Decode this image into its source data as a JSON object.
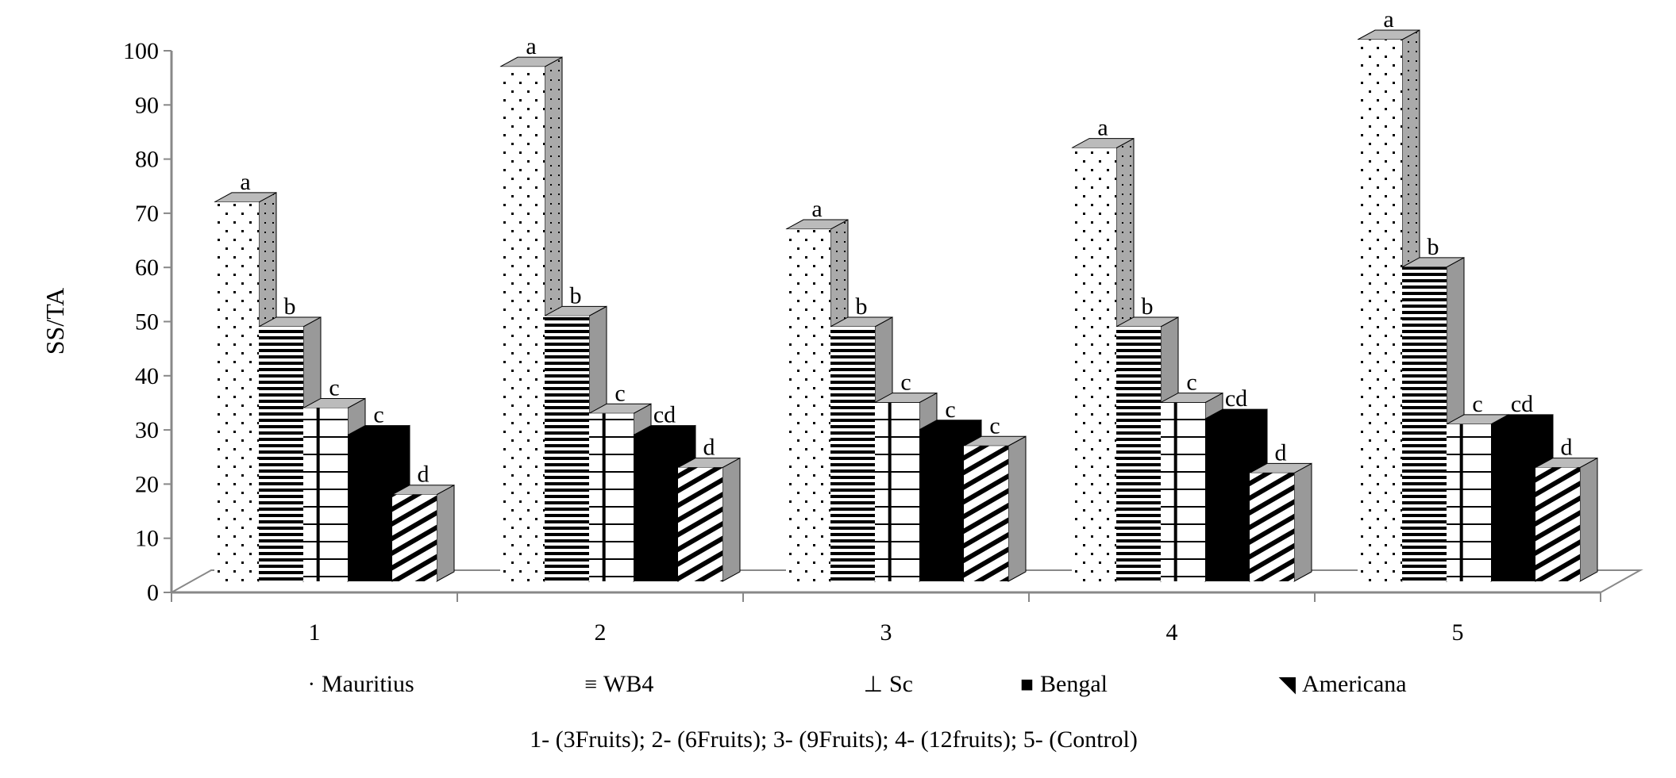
{
  "chart_data": {
    "type": "bar",
    "title": "",
    "xlabel": "",
    "ylabel": "SS/TA",
    "ylim": [
      0,
      100
    ],
    "yticks": [
      0,
      10,
      20,
      30,
      40,
      50,
      60,
      70,
      80,
      90,
      100
    ],
    "categories": [
      "1",
      "2",
      "3",
      "4",
      "5"
    ],
    "grid": false,
    "legend_position": "bottom",
    "style": "3d-clustered",
    "series": [
      {
        "name": "Mauritius",
        "pattern": "dots",
        "values": [
          70,
          95,
          65,
          80,
          100
        ],
        "letters": [
          "a",
          "a",
          "a",
          "a",
          "a"
        ]
      },
      {
        "name": "WB4",
        "pattern": "horizontal-lines",
        "values": [
          47,
          49,
          47,
          47,
          58
        ],
        "letters": [
          "b",
          "b",
          "b",
          "b",
          "b"
        ]
      },
      {
        "name": "Sc",
        "pattern": "grid",
        "values": [
          32,
          31,
          33,
          33,
          29
        ],
        "letters": [
          "c",
          "c",
          "c",
          "c",
          "c"
        ]
      },
      {
        "name": "Bengal",
        "pattern": "solid-black",
        "values": [
          27,
          27,
          28,
          30,
          29
        ],
        "letters": [
          "c",
          "cd",
          "c",
          "cd",
          "cd"
        ]
      },
      {
        "name": "Americana",
        "pattern": "diagonal-stripes",
        "values": [
          16,
          21,
          25,
          20,
          21
        ],
        "letters": [
          "d",
          "d",
          "c",
          "d",
          "d"
        ]
      }
    ],
    "caption": "1- (3Fruits); 2- (6Fruits); 3- (9Fruits); 4- (12fruits); 5- (Control)"
  }
}
